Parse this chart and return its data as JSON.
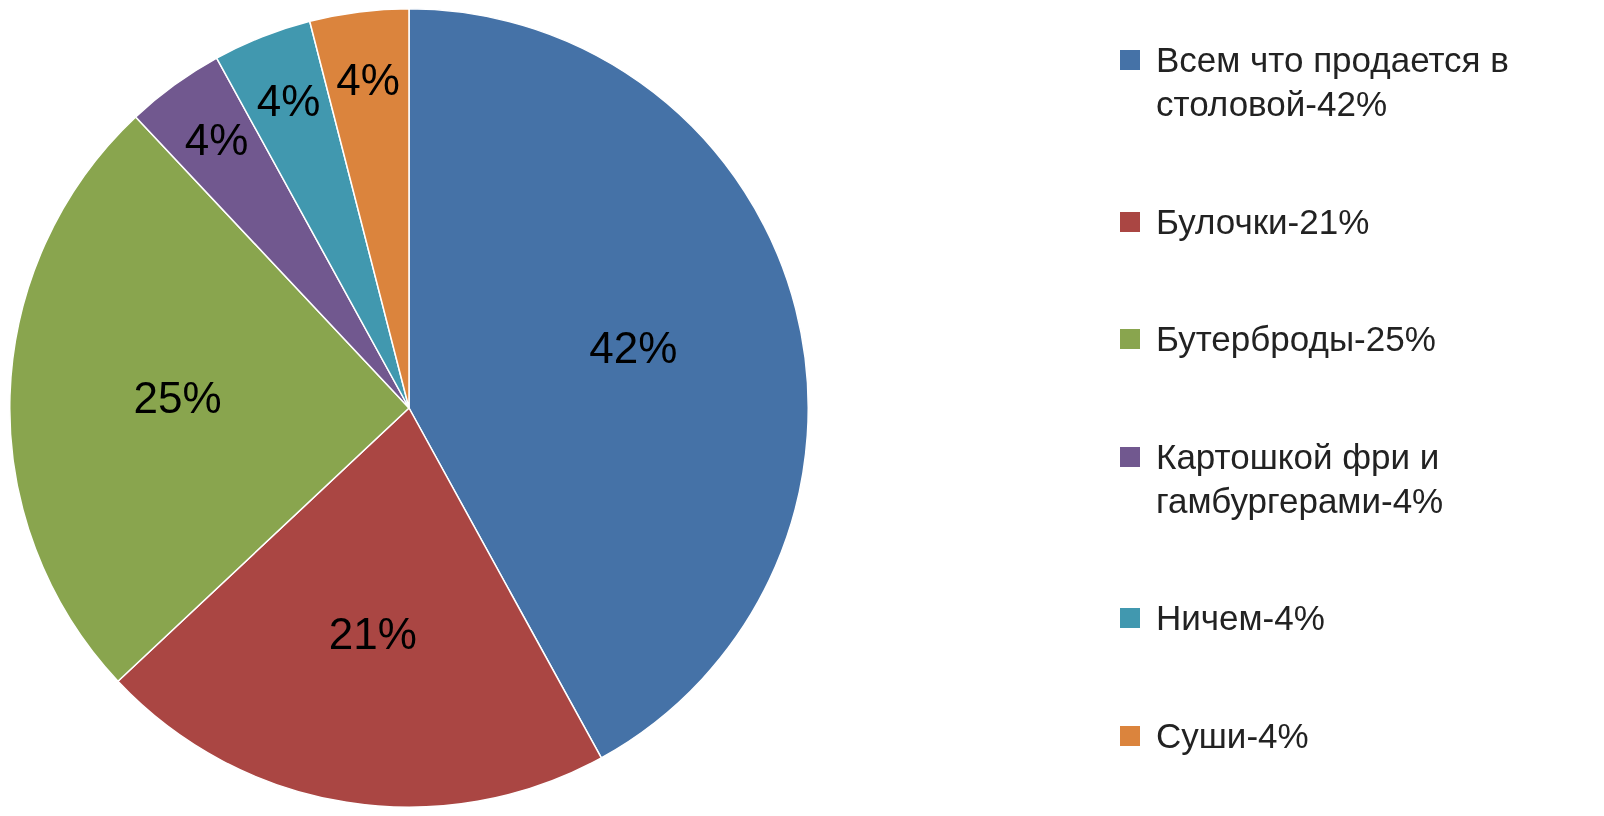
{
  "chart_data": {
    "type": "pie",
    "categories": [
      "Всем что продается в столовой-42%",
      "Булочки-21%",
      "Бутерброды-25%",
      "Картошкой фри и гамбургерами-4%",
      "Ничем-4%",
      "Суши-4%"
    ],
    "values": [
      42,
      21,
      25,
      4,
      4,
      4
    ],
    "colors": [
      "#4572a7",
      "#aa4643",
      "#89a54e",
      "#71588f",
      "#4198af",
      "#db843d"
    ],
    "value_labels": [
      "42%",
      "21%",
      "25%",
      "4%",
      "4%",
      "4%"
    ],
    "legend": "right"
  }
}
